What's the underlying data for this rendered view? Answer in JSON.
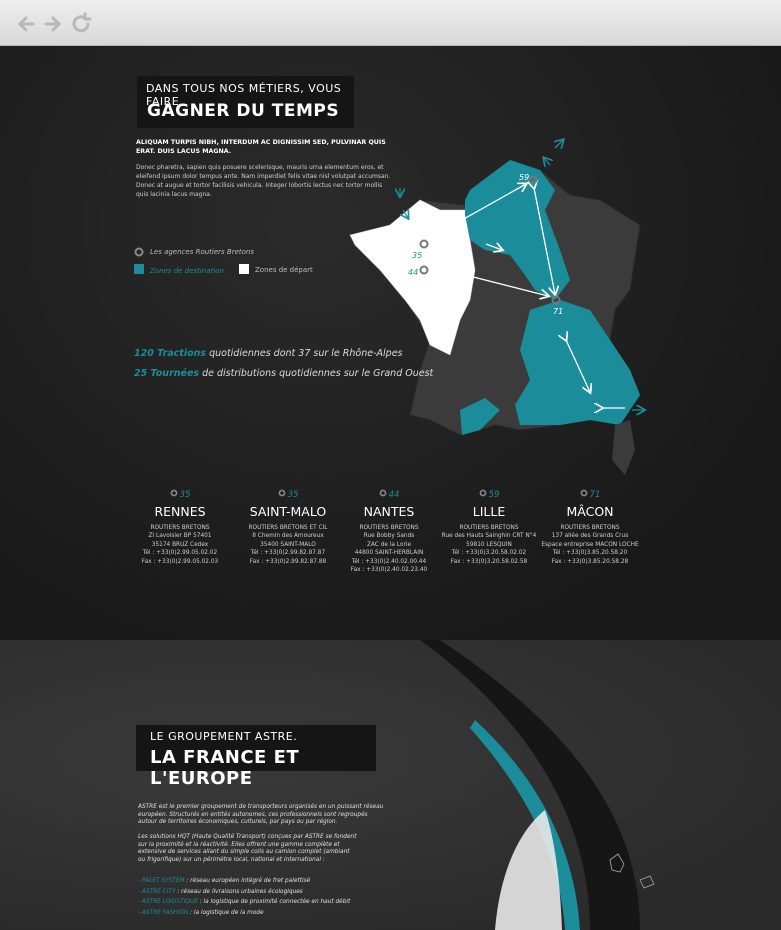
{
  "section1": {
    "kicker": "DANS TOUS NOS MÉTIERS, VOUS FAIRE",
    "title": "GAGNER DU TEMPS",
    "lead": "ALIQUAM TURPIS NIBH, INTERDUM AC DIGNISSIM SED, PULVINAR QUIS ERAT. DUIS LACUS MAGNA.",
    "body": "Donec pharetra, sapien quis posuere scelerisque, mauris urna elementum eros, et eleifend ipsum dolor tempus ante. Nam imperdiet felis vitae nisl volutpat accumsan. Donec at augue et tortor facilisis vehicula. Integer lobortis lectus nec tortor mollis quis lacinia lacus magna.",
    "legend": [
      "Les agences Routiers Bretons",
      "Zones de destination",
      "Zones de départ"
    ],
    "stats": [
      {
        "highlight": "120 Tractions",
        "text": "quotidiennes dont 37 sur le Rhône-Alpes"
      },
      {
        "highlight": "25 Tournées",
        "text": "de distributions quotidiennes sur le Grand Ouest"
      }
    ],
    "map_labels": [
      "59",
      "35",
      "44",
      "71"
    ],
    "agencies": [
      {
        "number": "35",
        "city": "RENNES",
        "lines": [
          "ROUTIERS BRETONS",
          "ZI Lavoisier BP 57401",
          "35174 BRUZ Cedex",
          "Tél : +33(0)2.99.05.02.02",
          "Fax : +33(0)2.99.05.02.03"
        ]
      },
      {
        "number": "35",
        "city": "SAINT-MALO",
        "lines": [
          "ROUTIERS BRETONS ET CIL",
          "8 Chemin des Amoureux",
          "35400 SAINT-MALO",
          "Tél : +33(0)2.99.82.87.87",
          "Fax : +33(0)2.99.82.87.88"
        ]
      },
      {
        "number": "44",
        "city": "NANTES",
        "lines": [
          "ROUTIERS BRETONS",
          "Rue Bobby Sands",
          "ZAC de la Lorie",
          "44800 SAINT-HERBLAIN",
          "Tél : +33(0)2.40.02.00.44",
          "Fax : +33(0)2.40.02.23.40"
        ]
      },
      {
        "number": "59",
        "city": "LILLE",
        "lines": [
          "ROUTIERS BRETONS",
          "Rue des Hauts Sainghin CRT N°4",
          "59810 LESQUIN",
          "Tél : +33(0)3.20.58.02.02",
          "Fax : +33(0)3.20.58.02.58"
        ]
      },
      {
        "number": "71",
        "city": "MÂCON",
        "lines": [
          "ROUTIERS BRETONS",
          "137 allée des Grands Crus",
          "Espace entreprise MACON LOCHE",
          "Tél : +33(0)3.85.20.58.20",
          "Fax : +33(0)3.85.20.58.28"
        ]
      }
    ]
  },
  "section2": {
    "kicker": "LE GROUPEMENT ASTRE.",
    "title": "LA FRANCE ET L'EUROPE",
    "paragraphs": [
      "ASTRE est le premier groupement de transporteurs organisés en un puissant réseau européen. Structurés en entités autonomes, ces professionnels sont regroupés autour de territoires économiques, culturels, par pays ou par région.",
      "Les solutions HQT (Haute Qualité Transport) conçues par ASTRE se fondent sur la proximité et la réactivité. Elles offrent une gamme complète et extensive de services allant du simple colis au camion complet (ambiant ou frigorifique) sur un périmètre local, national et international :"
    ],
    "list": [
      {
        "term": "- PALET SYSTEM",
        "desc": ": réseau européen intégré de fret palettisé"
      },
      {
        "term": "- ASTRE CITY",
        "desc": ": réseau de livraisons urbaines écologiques"
      },
      {
        "term": "- ASTRE LOGISTIQUE",
        "desc": ": la logistique de proximité connectée en haut débit"
      },
      {
        "term": "- ASTRE FASHION",
        "desc": ": la logistique de la mode"
      }
    ]
  }
}
